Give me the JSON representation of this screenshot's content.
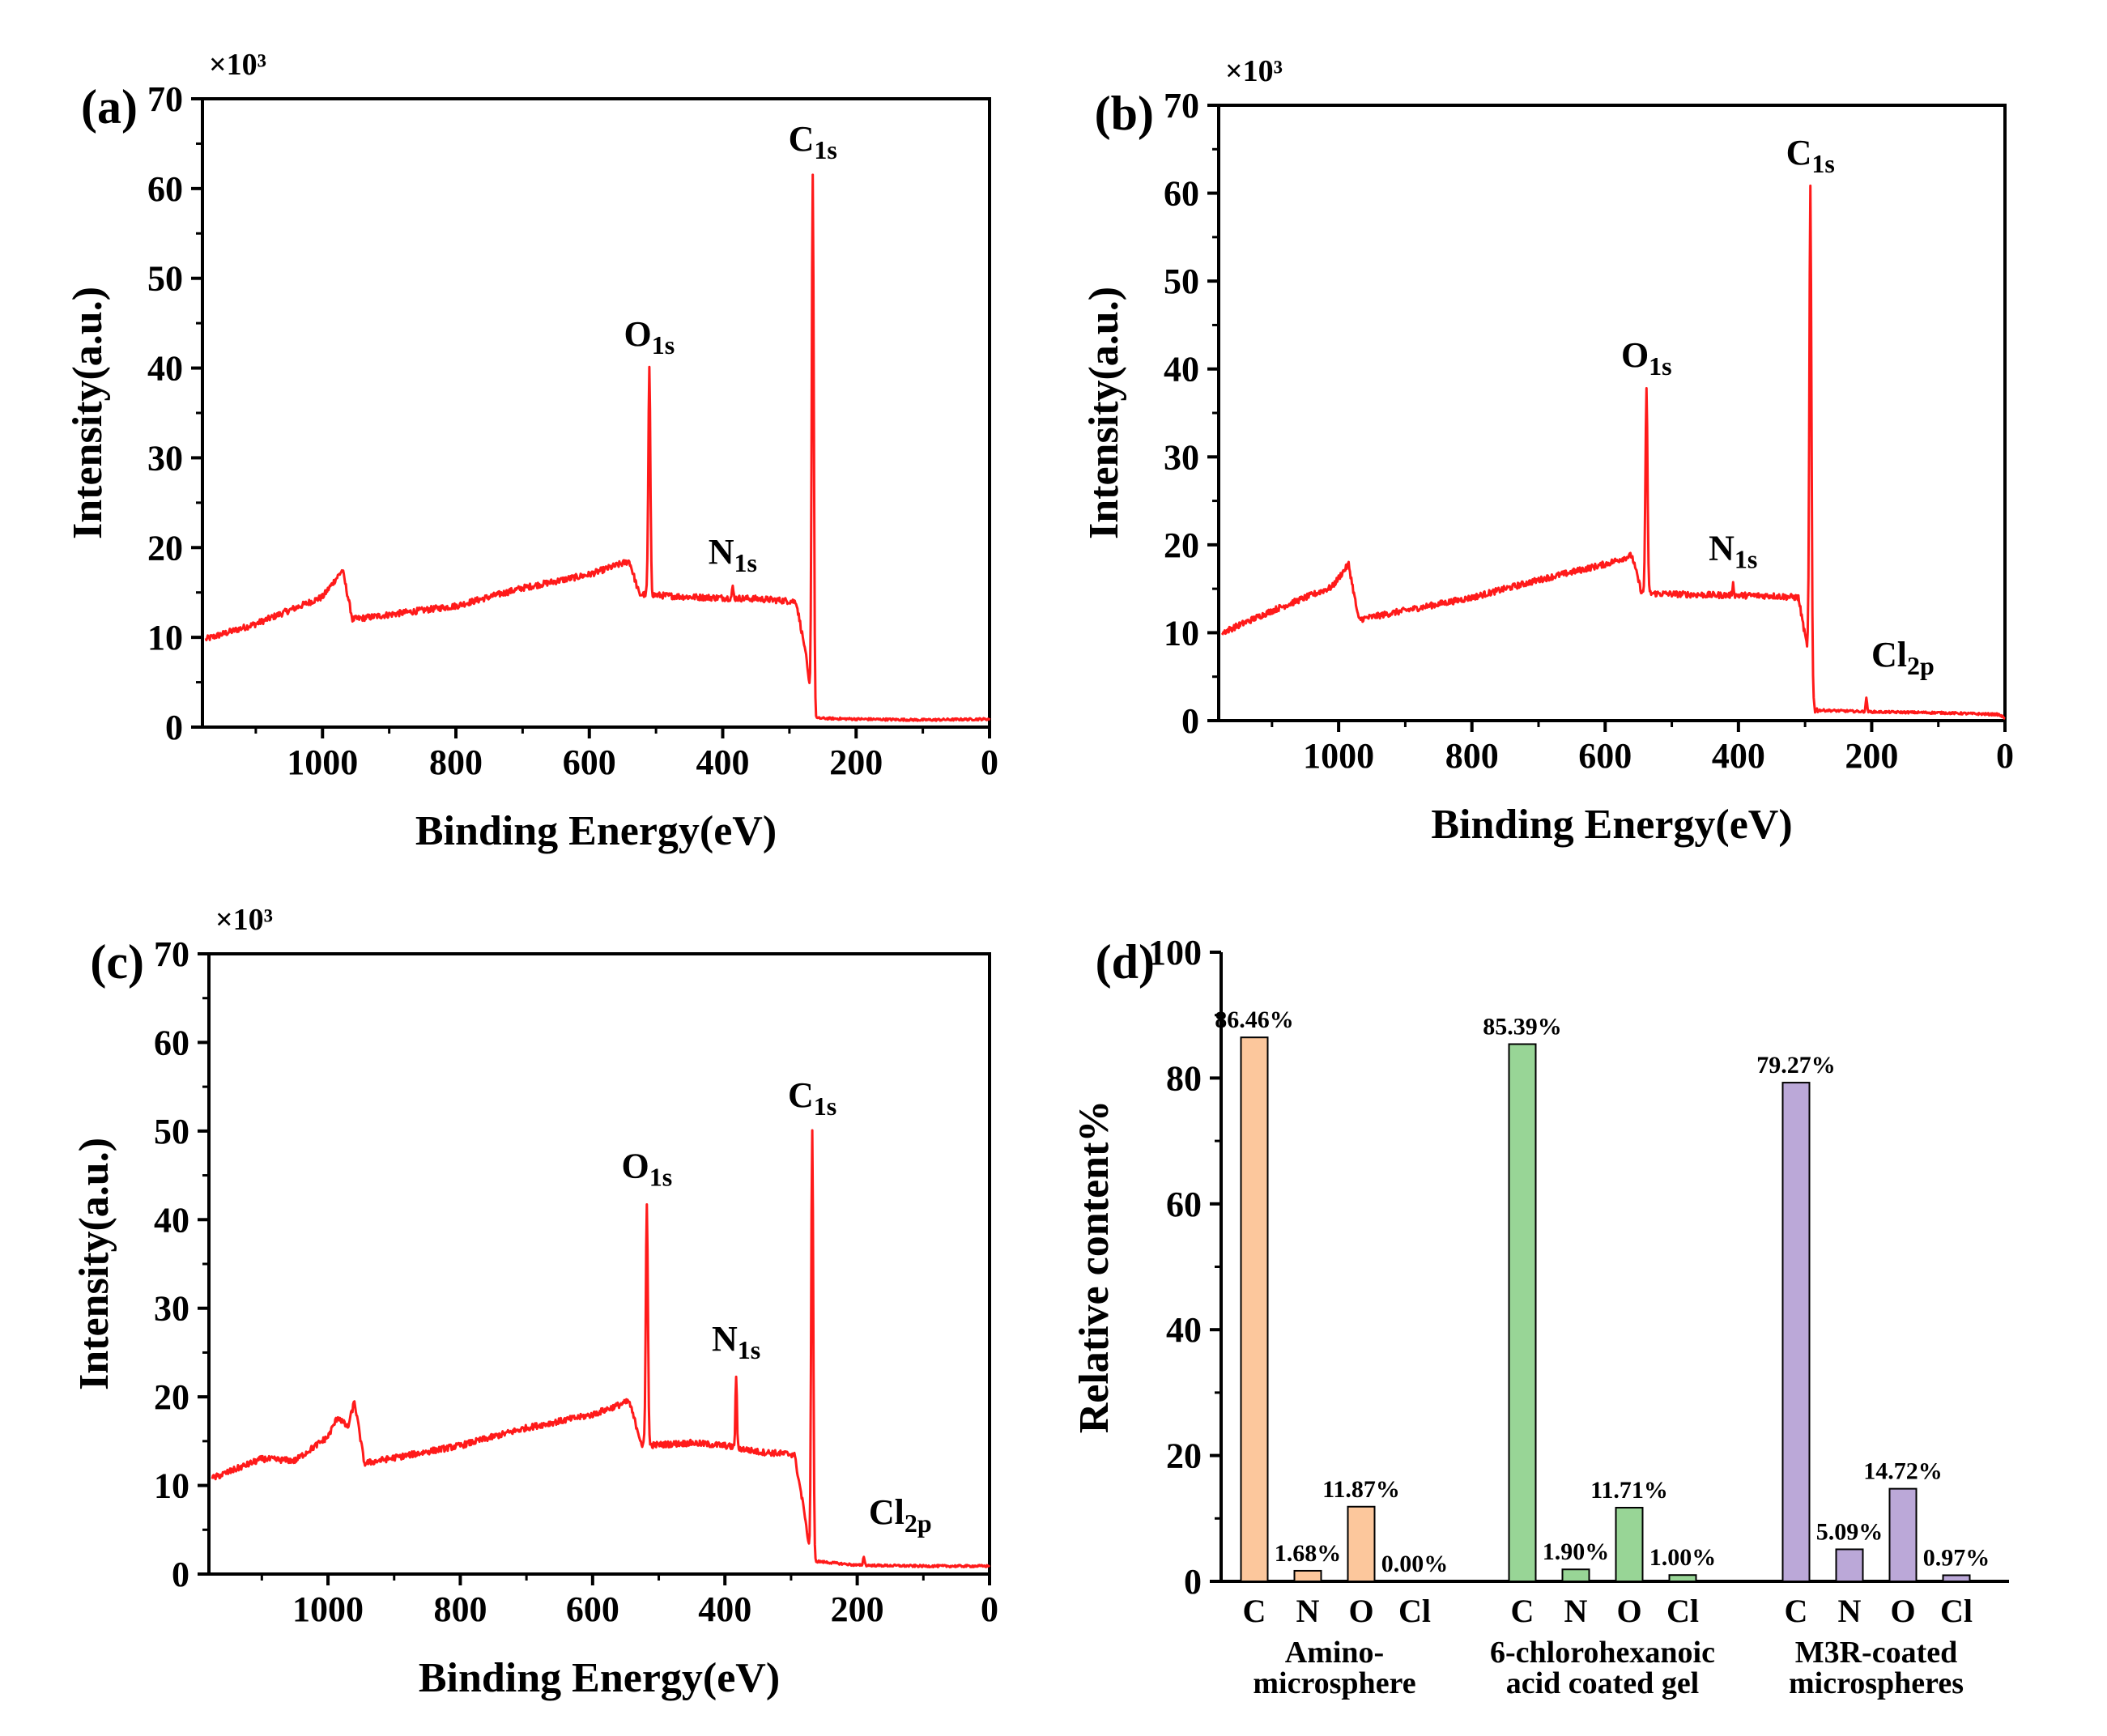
{
  "colors": {
    "spectrum": "#ff1a1a",
    "bar_C_1": "#fcc79c",
    "bar_C_2": "#98d596",
    "bar_C_3": "#bba8d8"
  },
  "chart_data": [
    {
      "type": "line",
      "panel": "(a)",
      "xlabel": "Binding Energy(eV)",
      "ylabel": "Intensity(a.u.)",
      "y_multiplier": "×10³",
      "xlim": [
        1180,
        0
      ],
      "ylim": [
        0,
        70
      ],
      "x_ticks": [
        1000,
        800,
        600,
        400,
        200,
        0
      ],
      "y_ticks": [
        0,
        10,
        20,
        30,
        40,
        50,
        60,
        70
      ],
      "baseline": [
        [
          1175,
          9.8
        ],
        [
          1100,
          11.5
        ],
        [
          1000,
          14.5
        ],
        [
          970,
          17.5
        ],
        [
          955,
          12.0
        ],
        [
          800,
          13.5
        ],
        [
          700,
          15.5
        ],
        [
          600,
          17.0
        ],
        [
          540,
          18.5
        ],
        [
          525,
          14.8
        ],
        [
          450,
          14.5
        ],
        [
          350,
          14.3
        ],
        [
          290,
          14.0
        ],
        [
          275,
          8.0
        ],
        [
          265,
          1.0
        ],
        [
          200,
          0.9
        ],
        [
          100,
          0.8
        ],
        [
          0,
          0.9
        ]
      ],
      "peaks": [
        {
          "name": "O",
          "sub": "1s",
          "x": 510,
          "y": 39.8
        },
        {
          "name": "N",
          "sub": "1s",
          "x": 385,
          "y": 15.5
        },
        {
          "name": "C",
          "sub": "1s",
          "x": 265,
          "y": 61.5
        }
      ]
    },
    {
      "type": "line",
      "panel": "(b)",
      "xlabel": "Binding Energy(eV)",
      "ylabel": "Intensity(a.u.)",
      "y_multiplier": "×10³",
      "xlim": [
        1180,
        0
      ],
      "ylim": [
        0,
        70
      ],
      "x_ticks": [
        1000,
        800,
        600,
        400,
        200,
        0
      ],
      "y_ticks": [
        0,
        10,
        20,
        30,
        40,
        50,
        60,
        70
      ],
      "baseline": [
        [
          1175,
          10.0
        ],
        [
          1100,
          12.5
        ],
        [
          1010,
          15.2
        ],
        [
          985,
          17.8
        ],
        [
          970,
          11.5
        ],
        [
          800,
          14.0
        ],
        [
          700,
          16.0
        ],
        [
          600,
          17.8
        ],
        [
          560,
          18.8
        ],
        [
          545,
          14.5
        ],
        [
          450,
          14.3
        ],
        [
          350,
          14.2
        ],
        [
          310,
          14.0
        ],
        [
          295,
          7.5
        ],
        [
          285,
          1.2
        ],
        [
          200,
          1.0
        ],
        [
          100,
          0.9
        ],
        [
          10,
          0.7
        ],
        [
          0,
          0.3
        ]
      ],
      "peaks": [
        {
          "name": "O",
          "sub": "1s",
          "x": 538,
          "y": 37.5
        },
        {
          "name": "N",
          "sub": "1s",
          "x": 408,
          "y": 15.5
        },
        {
          "name": "C",
          "sub": "1s",
          "x": 292,
          "y": 60.5
        },
        {
          "name": "Cl",
          "sub": "2p",
          "x": 208,
          "y": 2.5
        }
      ]
    },
    {
      "type": "line",
      "panel": "(c)",
      "xlabel": "Binding Energy(eV)",
      "ylabel": "Intensity(a.u.)",
      "y_multiplier": "×10³",
      "xlim": [
        1180,
        0
      ],
      "ylim": [
        0,
        70
      ],
      "x_ticks": [
        1000,
        800,
        600,
        400,
        200,
        0
      ],
      "y_ticks": [
        0,
        10,
        20,
        30,
        40,
        50,
        60,
        70
      ],
      "baseline": [
        [
          1175,
          10.8
        ],
        [
          1100,
          13.0
        ],
        [
          1050,
          12.8
        ],
        [
          1000,
          15.5
        ],
        [
          985,
          17.8
        ],
        [
          970,
          16.5
        ],
        [
          960,
          19.5
        ],
        [
          945,
          12.5
        ],
        [
          800,
          14.5
        ],
        [
          700,
          16.5
        ],
        [
          600,
          18.0
        ],
        [
          545,
          19.5
        ],
        [
          525,
          14.5
        ],
        [
          450,
          14.8
        ],
        [
          400,
          14.5
        ],
        [
          350,
          13.8
        ],
        [
          295,
          13.5
        ],
        [
          280,
          7.0
        ],
        [
          270,
          1.5
        ],
        [
          200,
          1.0
        ],
        [
          100,
          0.9
        ],
        [
          0,
          0.9
        ]
      ],
      "peaks": [
        {
          "name": "O",
          "sub": "1s",
          "x": 518,
          "y": 42.0
        },
        {
          "name": "N",
          "sub": "1s",
          "x": 383,
          "y": 22.5
        },
        {
          "name": "C",
          "sub": "1s",
          "x": 268,
          "y": 50.0
        },
        {
          "name": "Cl",
          "sub": "2p",
          "x": 190,
          "y": 2.0
        }
      ]
    },
    {
      "type": "bar",
      "panel": "(d)",
      "ylabel": "Relative content%",
      "ylim": [
        0,
        100
      ],
      "y_ticks": [
        0,
        20,
        40,
        60,
        80,
        100
      ],
      "categories": [
        "C",
        "N",
        "O",
        "Cl"
      ],
      "series": [
        {
          "name": "Amino-microsphere",
          "label_lines": [
            "Amino-",
            "microsphere"
          ],
          "values": [
            86.46,
            1.68,
            11.87,
            0.0
          ],
          "labels": [
            "86.46%",
            "1.68%",
            "11.87%",
            "0.00%"
          ]
        },
        {
          "name": "6-chlorohexanoic acid coated gel",
          "label_lines": [
            "6-chlorohexanoic",
            "acid coated gel"
          ],
          "values": [
            85.39,
            1.9,
            11.71,
            1.0
          ],
          "labels": [
            "85.39%",
            "1.90%",
            "11.71%",
            "1.00%"
          ]
        },
        {
          "name": "M3R-coated microspheres",
          "label_lines": [
            "M3R-coated",
            "microspheres"
          ],
          "values": [
            79.27,
            5.09,
            14.72,
            0.97
          ],
          "labels": [
            "79.27%",
            "5.09%",
            "14.72%",
            "0.97%"
          ]
        }
      ]
    }
  ]
}
